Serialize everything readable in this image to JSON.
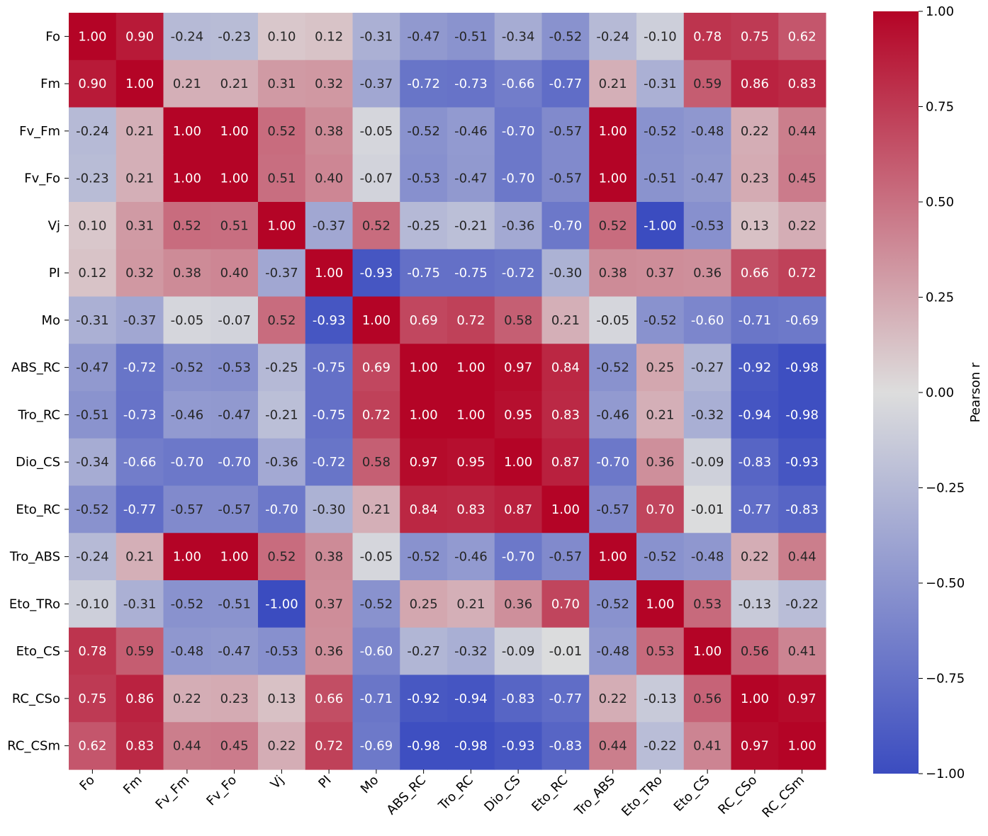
{
  "chart_data": {
    "type": "heatmap",
    "title": "",
    "xlabel": "",
    "ylabel": "",
    "variables": [
      "Fo",
      "Fm",
      "Fv_Fm",
      "Fv_Fo",
      "Vj",
      "PI",
      "Mo",
      "ABS_RC",
      "Tro_RC",
      "Dio_CS",
      "Eto_RC",
      "Tro_ABS",
      "Eto_TRo",
      "Eto_CS",
      "RC_CSo",
      "RC_CSm"
    ],
    "matrix": [
      [
        1.0,
        0.9,
        -0.24,
        -0.23,
        0.1,
        0.12,
        -0.31,
        -0.47,
        -0.51,
        -0.34,
        -0.52,
        -0.24,
        -0.1,
        0.78,
        0.75,
        0.62
      ],
      [
        0.9,
        1.0,
        0.21,
        0.21,
        0.31,
        0.32,
        -0.37,
        -0.72,
        -0.73,
        -0.66,
        -0.77,
        0.21,
        -0.31,
        0.59,
        0.86,
        0.83
      ],
      [
        -0.24,
        0.21,
        1.0,
        1.0,
        0.52,
        0.38,
        -0.05,
        -0.52,
        -0.46,
        -0.7,
        -0.57,
        1.0,
        -0.52,
        -0.48,
        0.22,
        0.44
      ],
      [
        -0.23,
        0.21,
        1.0,
        1.0,
        0.51,
        0.4,
        -0.07,
        -0.53,
        -0.47,
        -0.7,
        -0.57,
        1.0,
        -0.51,
        -0.47,
        0.23,
        0.45
      ],
      [
        0.1,
        0.31,
        0.52,
        0.51,
        1.0,
        -0.37,
        0.52,
        -0.25,
        -0.21,
        -0.36,
        -0.7,
        0.52,
        -1.0,
        -0.53,
        0.13,
        0.22
      ],
      [
        0.12,
        0.32,
        0.38,
        0.4,
        -0.37,
        1.0,
        -0.93,
        -0.75,
        -0.75,
        -0.72,
        -0.3,
        0.38,
        0.37,
        0.36,
        0.66,
        0.72
      ],
      [
        -0.31,
        -0.37,
        -0.05,
        -0.07,
        0.52,
        -0.93,
        1.0,
        0.69,
        0.72,
        0.58,
        0.21,
        -0.05,
        -0.52,
        -0.6,
        -0.71,
        -0.69
      ],
      [
        -0.47,
        -0.72,
        -0.52,
        -0.53,
        -0.25,
        -0.75,
        0.69,
        1.0,
        1.0,
        0.97,
        0.84,
        -0.52,
        0.25,
        -0.27,
        -0.92,
        -0.98
      ],
      [
        -0.51,
        -0.73,
        -0.46,
        -0.47,
        -0.21,
        -0.75,
        0.72,
        1.0,
        1.0,
        0.95,
        0.83,
        -0.46,
        0.21,
        -0.32,
        -0.94,
        -0.98
      ],
      [
        -0.34,
        -0.66,
        -0.7,
        -0.7,
        -0.36,
        -0.72,
        0.58,
        0.97,
        0.95,
        1.0,
        0.87,
        -0.7,
        0.36,
        -0.09,
        -0.83,
        -0.93
      ],
      [
        -0.52,
        -0.77,
        -0.57,
        -0.57,
        -0.7,
        -0.3,
        0.21,
        0.84,
        0.83,
        0.87,
        1.0,
        -0.57,
        0.7,
        -0.01,
        -0.77,
        -0.83
      ],
      [
        -0.24,
        0.21,
        1.0,
        1.0,
        0.52,
        0.38,
        -0.05,
        -0.52,
        -0.46,
        -0.7,
        -0.57,
        1.0,
        -0.52,
        -0.48,
        0.22,
        0.44
      ],
      [
        -0.1,
        -0.31,
        -0.52,
        -0.51,
        -1.0,
        0.37,
        -0.52,
        0.25,
        0.21,
        0.36,
        0.7,
        -0.52,
        1.0,
        0.53,
        -0.13,
        -0.22
      ],
      [
        0.78,
        0.59,
        -0.48,
        -0.47,
        -0.53,
        0.36,
        -0.6,
        -0.27,
        -0.32,
        -0.09,
        -0.01,
        -0.48,
        0.53,
        1.0,
        0.56,
        0.41
      ],
      [
        0.75,
        0.86,
        0.22,
        0.23,
        0.13,
        0.66,
        -0.71,
        -0.92,
        -0.94,
        -0.83,
        -0.77,
        0.22,
        -0.13,
        0.56,
        1.0,
        0.97
      ],
      [
        0.62,
        0.83,
        0.44,
        0.45,
        0.22,
        0.72,
        -0.69,
        -0.98,
        -0.98,
        -0.93,
        -0.83,
        0.44,
        -0.22,
        0.41,
        0.97,
        1.0
      ]
    ],
    "value_range": [
      -1.0,
      1.0
    ],
    "colormap": "coolwarm",
    "colormap_stops": [
      "#3b4cc0",
      "#dddddd",
      "#b40426"
    ],
    "annotation_format": "0.00",
    "colorbar": {
      "label": "Pearson r",
      "ticks": [
        1.0,
        0.75,
        0.5,
        0.25,
        0.0,
        -0.25,
        -0.5,
        -0.75,
        -1.0
      ],
      "tick_labels": [
        "1.00",
        "0.75",
        "0.50",
        "0.25",
        "0.00",
        "−0.25",
        "−0.50",
        "−0.75",
        "−1.00"
      ]
    },
    "grid": false,
    "legend_placement": "right"
  }
}
